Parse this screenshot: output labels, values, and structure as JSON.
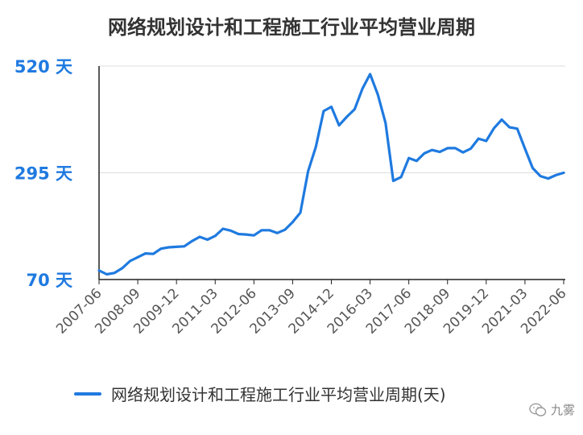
{
  "chart_data": {
    "type": "line",
    "title": "网络规划设计和工程施工行业平均营业周期",
    "ylim": [
      70,
      520
    ],
    "yticks": [
      "520 天",
      "295 天",
      "70 天"
    ],
    "ytick_values": [
      520,
      295,
      70
    ],
    "xtick_labels": [
      "2007-06",
      "2008-09",
      "2009-12",
      "2011-03",
      "2012-06",
      "2013-09",
      "2014-12",
      "2016-03",
      "2017-06",
      "2018-09",
      "2019-12",
      "2021-03",
      "2022-06"
    ],
    "x_start": "2007-06",
    "x_step_months": 3,
    "grid": true,
    "legend_position": "bottom",
    "series": [
      {
        "name": "网络规划设计和工程施工行业平均营业周期(天)",
        "color": "#1f7ae0",
        "values": [
          89,
          81,
          84,
          94,
          109,
          117,
          125,
          124,
          135,
          138,
          139,
          140,
          151,
          160,
          154,
          162,
          177,
          173,
          166,
          165,
          163,
          174,
          174,
          168,
          175,
          191,
          211,
          298,
          350,
          425,
          434,
          395,
          413,
          429,
          472,
          503,
          460,
          400,
          278,
          286,
          326,
          320,
          336,
          343,
          339,
          347,
          347,
          338,
          346,
          367,
          362,
          389,
          407,
          391,
          388,
          346,
          305,
          288,
          283,
          290,
          295
        ]
      }
    ]
  },
  "legend": {
    "label": "网络规划设计和工程施工行业平均营业周期(天)"
  },
  "watermark": {
    "text": "九雾",
    "icon": "wechat-icon"
  }
}
